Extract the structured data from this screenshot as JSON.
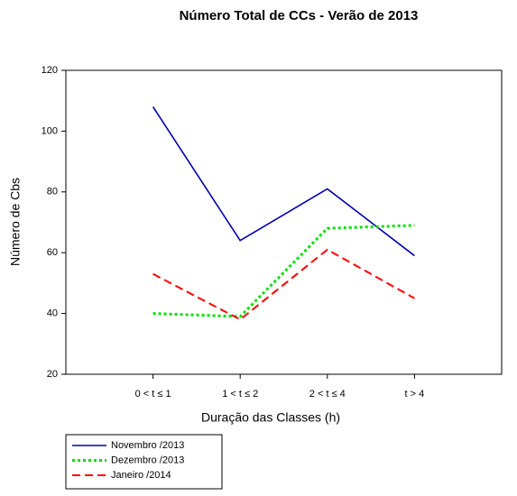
{
  "chart_data": {
    "type": "line",
    "title": "Número Total de CCs - Verão de 2013",
    "x_label": "Duração das Classes (h)",
    "y_label": "Número de Cbs",
    "categories": [
      "0 < t ≤ 1",
      "1 < t ≤ 2",
      "2 < t ≤ 4",
      "t > 4"
    ],
    "series": [
      {
        "name": "Novembro /2013",
        "color": "#0000aa",
        "values": [
          108,
          64,
          81,
          59
        ]
      },
      {
        "name": "Dezembro /2013",
        "color": "#00e000",
        "values": [
          40,
          39,
          68,
          69
        ]
      },
      {
        "name": "Janeiro /2014",
        "color": "#ff0000",
        "values": [
          53,
          38,
          61,
          45
        ]
      }
    ],
    "ylim": [
      20,
      120
    ],
    "yticks": [
      20,
      40,
      60,
      80,
      100,
      120
    ]
  }
}
